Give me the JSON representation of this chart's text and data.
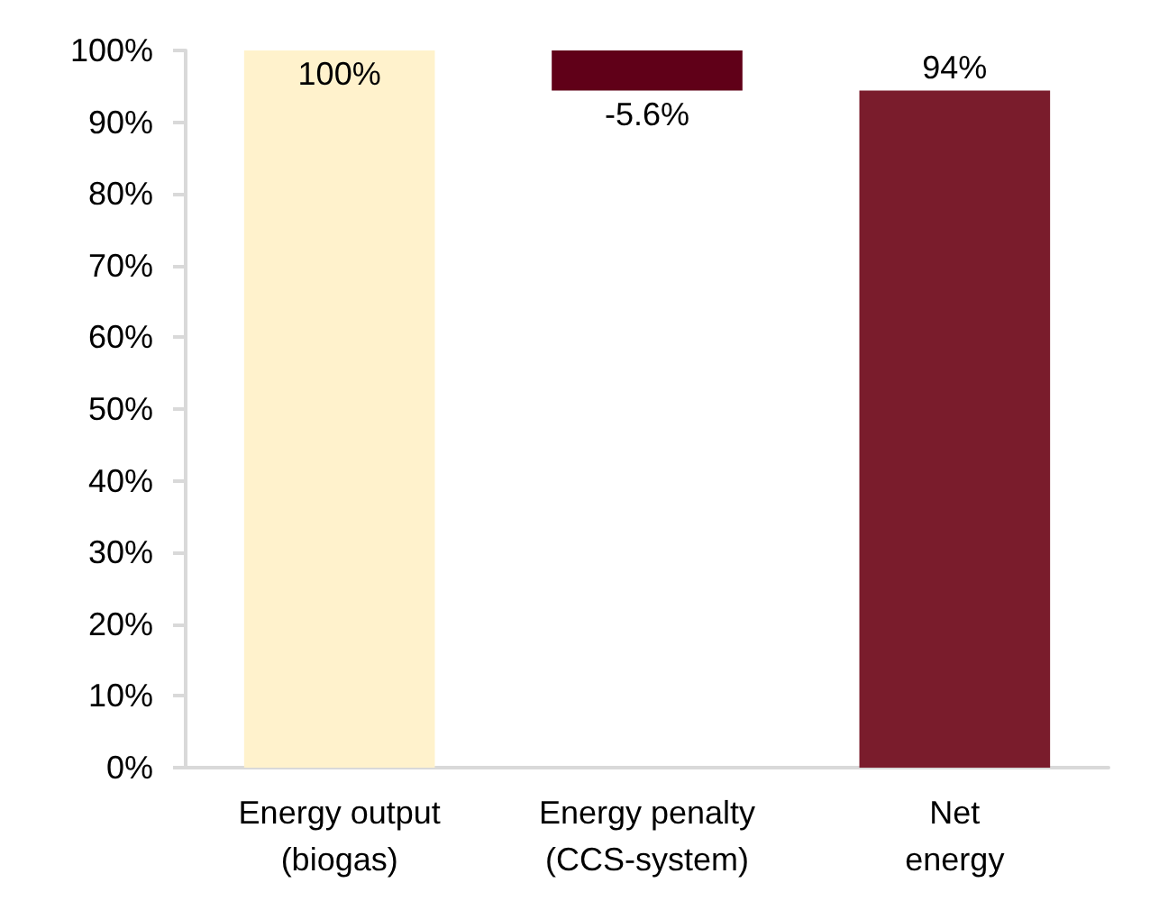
{
  "chart_data": {
    "type": "bar",
    "categories": [
      "Energy output\n(biogas)",
      "Energy penalty\n(CCS-system)",
      "Net\nenergy"
    ],
    "values": [
      100,
      -5.6,
      94.4
    ],
    "base": [
      0,
      100,
      0
    ],
    "colors": [
      "#fff2cc",
      "#600018",
      "#7a1c2c"
    ],
    "value_labels": [
      "100%",
      "-5.6%",
      "94%"
    ],
    "ylim": [
      0,
      100
    ],
    "yticks": [
      {
        "value": 0,
        "label": "0%"
      },
      {
        "value": 10,
        "label": "10%"
      },
      {
        "value": 20,
        "label": "20%"
      },
      {
        "value": 30,
        "label": "30%"
      },
      {
        "value": 40,
        "label": "40%"
      },
      {
        "value": 50,
        "label": "50%"
      },
      {
        "value": 60,
        "label": "60%"
      },
      {
        "value": 70,
        "label": "70%"
      },
      {
        "value": 80,
        "label": "80%"
      },
      {
        "value": 90,
        "label": "90%"
      },
      {
        "value": 100,
        "label": "100%"
      }
    ],
    "grid": false
  }
}
